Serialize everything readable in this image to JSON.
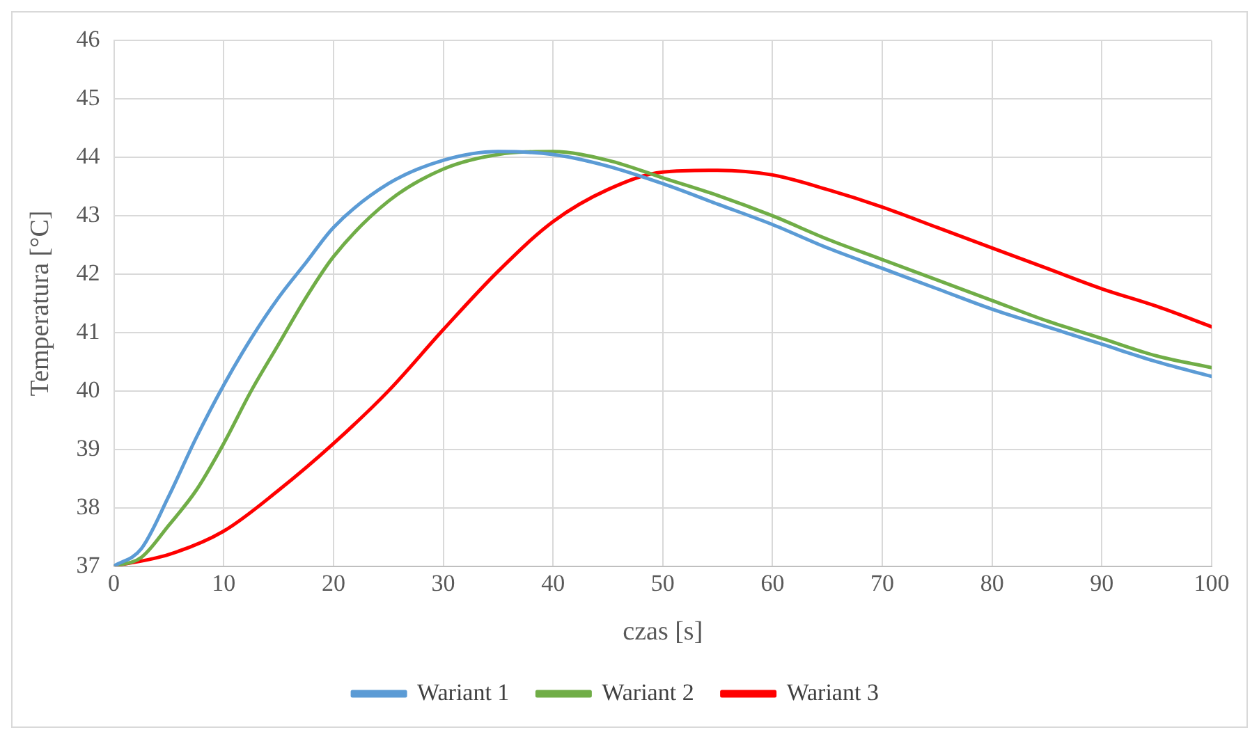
{
  "chart_data": {
    "type": "line",
    "xlabel": "czas [s]",
    "ylabel": "Temperatura [°C]",
    "xlim": [
      0,
      100
    ],
    "xticks": [
      0,
      10,
      20,
      30,
      40,
      50,
      60,
      70,
      80,
      90,
      100
    ],
    "ylim": [
      37,
      46
    ],
    "yticks": [
      37,
      38,
      39,
      40,
      41,
      42,
      43,
      44,
      45,
      46
    ],
    "grid": true,
    "legend": "bottom",
    "marker": "none",
    "line_style": "solid",
    "series": [
      {
        "name": "Wariant 1",
        "color": "#5b9bd5",
        "x": [
          0,
          2.5,
          5,
          7.5,
          10,
          12.5,
          15,
          17.5,
          20,
          25,
          30,
          35,
          40,
          45,
          50,
          55,
          60,
          65,
          70,
          75,
          80,
          85,
          90,
          95,
          100
        ],
        "values": [
          37,
          37.3,
          38.2,
          39.2,
          40.1,
          40.9,
          41.6,
          42.2,
          42.8,
          43.55,
          43.95,
          44.1,
          44.05,
          43.85,
          43.55,
          43.2,
          42.85,
          42.45,
          42.1,
          41.75,
          41.4,
          41.1,
          40.8,
          40.5,
          40.25
        ]
      },
      {
        "name": "Wariant 2",
        "color": "#70ad47",
        "x": [
          0,
          2.5,
          5,
          7.5,
          10,
          12.5,
          15,
          17.5,
          20,
          25,
          30,
          35,
          40,
          45,
          50,
          55,
          60,
          65,
          70,
          75,
          80,
          85,
          90,
          95,
          100
        ],
        "values": [
          37,
          37.15,
          37.7,
          38.3,
          39.1,
          40.0,
          40.8,
          41.6,
          42.3,
          43.25,
          43.8,
          44.05,
          44.1,
          43.95,
          43.65,
          43.35,
          43.0,
          42.6,
          42.25,
          41.9,
          41.55,
          41.2,
          40.9,
          40.6,
          40.4
        ]
      },
      {
        "name": "Wariant 3",
        "color": "#ff0000",
        "x": [
          0,
          5,
          10,
          15,
          20,
          25,
          30,
          35,
          40,
          45,
          50,
          55,
          60,
          65,
          70,
          75,
          80,
          85,
          90,
          95,
          100
        ],
        "values": [
          37,
          37.2,
          37.6,
          38.3,
          39.1,
          40.0,
          41.05,
          42.05,
          42.9,
          43.45,
          43.75,
          43.78,
          43.7,
          43.45,
          43.15,
          42.8,
          42.45,
          42.1,
          41.75,
          41.45,
          41.1
        ]
      }
    ]
  }
}
